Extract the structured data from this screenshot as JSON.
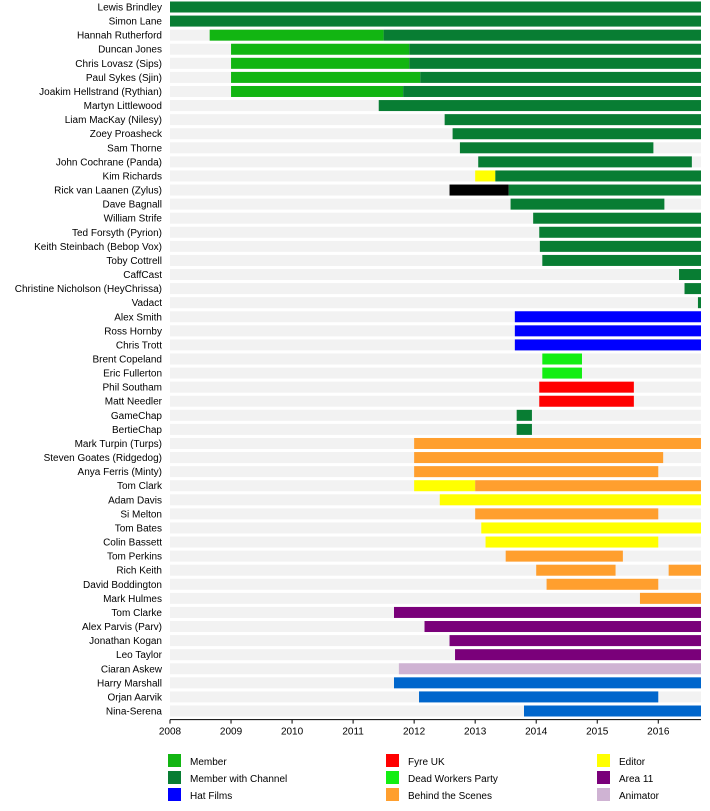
{
  "chart_data": {
    "type": "bar",
    "orientation": "horizontal-timeline",
    "title": "",
    "xlabel": "",
    "ylabel": "",
    "xlim": [
      2008,
      2016.7
    ],
    "x_ticks": [
      2008,
      2009,
      2010,
      2011,
      2012,
      2013,
      2014,
      2015,
      2016
    ],
    "grid": false,
    "legend_position": "bottom",
    "colors": {
      "Member": "#12b512",
      "Member with Channel": "#087d33",
      "Hat Films": "#0000ff",
      "Fyre UK": "#ff0000",
      "Dead Workers Party": "#12ee12",
      "Behind the Scenes": "#ff9f2e",
      "Editor": "#ffff00",
      "Area 11": "#7a007a",
      "Animator": "#cfb3d3",
      "Black": "#000000",
      "Mid Blue": "#0066cc"
    },
    "legend": [
      {
        "name": "Member",
        "color": "#12b512"
      },
      {
        "name": "Member with Channel",
        "color": "#087d33"
      },
      {
        "name": "Hat Films",
        "color": "#0000ff"
      },
      {
        "name": "Fyre UK",
        "color": "#ff0000"
      },
      {
        "name": "Dead Workers Party",
        "color": "#12ee12"
      },
      {
        "name": "Behind the Scenes",
        "color": "#ff9f2e"
      },
      {
        "name": "Editor",
        "color": "#ffff00"
      },
      {
        "name": "Area 11",
        "color": "#7a007a"
      },
      {
        "name": "Animator",
        "color": "#cfb3d3"
      }
    ],
    "rows": [
      {
        "name": "Lewis Brindley",
        "segments": [
          {
            "start": 2008.0,
            "end": 2016.7,
            "color": "#087d33"
          }
        ]
      },
      {
        "name": "Simon Lane",
        "segments": [
          {
            "start": 2008.0,
            "end": 2016.7,
            "color": "#087d33"
          }
        ]
      },
      {
        "name": "Hannah Rutherford",
        "segments": [
          {
            "start": 2008.65,
            "end": 2011.5,
            "color": "#12b512"
          },
          {
            "start": 2011.5,
            "end": 2016.7,
            "color": "#087d33"
          }
        ]
      },
      {
        "name": "Duncan Jones",
        "segments": [
          {
            "start": 2009.0,
            "end": 2011.92,
            "color": "#12b512"
          },
          {
            "start": 2011.92,
            "end": 2016.7,
            "color": "#087d33"
          }
        ]
      },
      {
        "name": "Chris Lovasz (Sips)",
        "segments": [
          {
            "start": 2009.0,
            "end": 2011.92,
            "color": "#12b512"
          },
          {
            "start": 2011.92,
            "end": 2016.7,
            "color": "#087d33"
          }
        ]
      },
      {
        "name": "Paul Sykes (Sjin)",
        "segments": [
          {
            "start": 2009.0,
            "end": 2012.1,
            "color": "#12b512"
          },
          {
            "start": 2012.1,
            "end": 2016.7,
            "color": "#087d33"
          }
        ]
      },
      {
        "name": "Joakim Hellstrand (Rythian)",
        "segments": [
          {
            "start": 2009.0,
            "end": 2011.82,
            "color": "#12b512"
          },
          {
            "start": 2011.82,
            "end": 2016.7,
            "color": "#087d33"
          }
        ]
      },
      {
        "name": "Martyn Littlewood",
        "segments": [
          {
            "start": 2011.42,
            "end": 2016.7,
            "color": "#087d33"
          }
        ]
      },
      {
        "name": "Liam MacKay (Nilesy)",
        "segments": [
          {
            "start": 2012.5,
            "end": 2016.7,
            "color": "#087d33"
          }
        ]
      },
      {
        "name": "Zoey Proasheck",
        "segments": [
          {
            "start": 2012.63,
            "end": 2016.7,
            "color": "#087d33"
          }
        ]
      },
      {
        "name": "Sam Thorne",
        "segments": [
          {
            "start": 2012.75,
            "end": 2015.92,
            "color": "#087d33"
          }
        ]
      },
      {
        "name": "John Cochrane (Panda)",
        "segments": [
          {
            "start": 2013.05,
            "end": 2016.55,
            "color": "#087d33"
          }
        ]
      },
      {
        "name": "Kim Richards",
        "segments": [
          {
            "start": 2013.0,
            "end": 2013.33,
            "color": "#ffff00"
          },
          {
            "start": 2013.33,
            "end": 2016.7,
            "color": "#087d33"
          }
        ]
      },
      {
        "name": "Rick van Laanen (Zylus)",
        "segments": [
          {
            "start": 2012.58,
            "end": 2013.55,
            "color": "#000000"
          },
          {
            "start": 2013.55,
            "end": 2016.7,
            "color": "#087d33"
          }
        ]
      },
      {
        "name": "Dave Bagnall",
        "segments": [
          {
            "start": 2013.58,
            "end": 2016.1,
            "color": "#087d33"
          }
        ]
      },
      {
        "name": "William Strife",
        "segments": [
          {
            "start": 2013.95,
            "end": 2016.7,
            "color": "#087d33"
          }
        ]
      },
      {
        "name": "Ted Forsyth (Pyrion)",
        "segments": [
          {
            "start": 2014.05,
            "end": 2016.7,
            "color": "#087d33"
          }
        ]
      },
      {
        "name": "Keith Steinbach (Bebop Vox)",
        "segments": [
          {
            "start": 2014.06,
            "end": 2016.7,
            "color": "#087d33"
          }
        ]
      },
      {
        "name": "Toby Cottrell",
        "segments": [
          {
            "start": 2014.1,
            "end": 2016.7,
            "color": "#087d33"
          }
        ]
      },
      {
        "name": "CaffCast",
        "segments": [
          {
            "start": 2016.34,
            "end": 2016.7,
            "color": "#087d33"
          }
        ]
      },
      {
        "name": "Christine Nicholson (HeyChrissa)",
        "segments": [
          {
            "start": 2016.43,
            "end": 2016.7,
            "color": "#087d33"
          }
        ]
      },
      {
        "name": "Vadact",
        "segments": [
          {
            "start": 2016.65,
            "end": 2016.7,
            "color": "#087d33"
          }
        ]
      },
      {
        "name": "Alex Smith",
        "segments": [
          {
            "start": 2013.65,
            "end": 2016.7,
            "color": "#0000ff"
          }
        ]
      },
      {
        "name": "Ross Hornby",
        "segments": [
          {
            "start": 2013.65,
            "end": 2016.7,
            "color": "#0000ff"
          }
        ]
      },
      {
        "name": "Chris Trott",
        "segments": [
          {
            "start": 2013.65,
            "end": 2016.7,
            "color": "#0000ff"
          }
        ]
      },
      {
        "name": "Brent Copeland",
        "segments": [
          {
            "start": 2014.1,
            "end": 2014.75,
            "color": "#12ee12"
          }
        ]
      },
      {
        "name": "Eric Fullerton",
        "segments": [
          {
            "start": 2014.1,
            "end": 2014.75,
            "color": "#12ee12"
          }
        ]
      },
      {
        "name": "Phil Southam",
        "segments": [
          {
            "start": 2014.05,
            "end": 2015.6,
            "color": "#ff0000"
          }
        ]
      },
      {
        "name": "Matt Needler",
        "segments": [
          {
            "start": 2014.05,
            "end": 2015.6,
            "color": "#ff0000"
          }
        ]
      },
      {
        "name": "GameChap",
        "segments": [
          {
            "start": 2013.68,
            "end": 2013.93,
            "color": "#087d33"
          }
        ]
      },
      {
        "name": "BertieChap",
        "segments": [
          {
            "start": 2013.68,
            "end": 2013.93,
            "color": "#087d33"
          }
        ]
      },
      {
        "name": "Mark Turpin (Turps)",
        "segments": [
          {
            "start": 2012.0,
            "end": 2016.7,
            "color": "#ff9f2e"
          }
        ]
      },
      {
        "name": "Steven Goates (Ridgedog)",
        "segments": [
          {
            "start": 2012.0,
            "end": 2016.08,
            "color": "#ff9f2e"
          }
        ]
      },
      {
        "name": "Anya Ferris (Minty)",
        "segments": [
          {
            "start": 2012.0,
            "end": 2016.0,
            "color": "#ff9f2e"
          }
        ]
      },
      {
        "name": "Tom Clark",
        "segments": [
          {
            "start": 2012.0,
            "end": 2013.0,
            "color": "#ffff00"
          },
          {
            "start": 2013.0,
            "end": 2016.7,
            "color": "#ff9f2e"
          }
        ]
      },
      {
        "name": "Adam Davis",
        "segments": [
          {
            "start": 2012.42,
            "end": 2016.7,
            "color": "#ffff00"
          }
        ]
      },
      {
        "name": "Si Melton",
        "segments": [
          {
            "start": 2013.0,
            "end": 2016.0,
            "color": "#ff9f2e"
          }
        ]
      },
      {
        "name": "Tom Bates",
        "segments": [
          {
            "start": 2013.1,
            "end": 2016.7,
            "color": "#ffff00"
          }
        ]
      },
      {
        "name": "Colin Bassett",
        "segments": [
          {
            "start": 2013.17,
            "end": 2016.0,
            "color": "#ffff00"
          }
        ]
      },
      {
        "name": "Tom Perkins",
        "segments": [
          {
            "start": 2013.5,
            "end": 2015.42,
            "color": "#ff9f2e"
          }
        ]
      },
      {
        "name": "Rich Keith",
        "segments": [
          {
            "start": 2014.0,
            "end": 2015.3,
            "color": "#ff9f2e"
          },
          {
            "start": 2016.17,
            "end": 2016.7,
            "color": "#ff9f2e"
          }
        ]
      },
      {
        "name": "David Boddington",
        "segments": [
          {
            "start": 2014.17,
            "end": 2016.0,
            "color": "#ff9f2e"
          }
        ]
      },
      {
        "name": "Mark Hulmes",
        "segments": [
          {
            "start": 2015.7,
            "end": 2016.7,
            "color": "#ff9f2e"
          }
        ]
      },
      {
        "name": "Tom Clarke",
        "segments": [
          {
            "start": 2011.67,
            "end": 2016.7,
            "color": "#7a007a"
          }
        ]
      },
      {
        "name": "Alex Parvis (Parv)",
        "segments": [
          {
            "start": 2012.17,
            "end": 2016.7,
            "color": "#7a007a"
          }
        ]
      },
      {
        "name": "Jonathan Kogan",
        "segments": [
          {
            "start": 2012.58,
            "end": 2016.7,
            "color": "#7a007a"
          }
        ]
      },
      {
        "name": "Leo Taylor",
        "segments": [
          {
            "start": 2012.67,
            "end": 2016.7,
            "color": "#7a007a"
          }
        ]
      },
      {
        "name": "Ciaran Askew",
        "segments": [
          {
            "start": 2011.75,
            "end": 2016.7,
            "color": "#cfb3d3"
          }
        ]
      },
      {
        "name": "Harry Marshall",
        "segments": [
          {
            "start": 2011.67,
            "end": 2016.7,
            "color": "#0066cc"
          }
        ]
      },
      {
        "name": "Orjan Aarvik",
        "segments": [
          {
            "start": 2012.08,
            "end": 2016.0,
            "color": "#0066cc"
          }
        ]
      },
      {
        "name": "Nina-Serena",
        "segments": [
          {
            "start": 2013.8,
            "end": 2016.7,
            "color": "#0066cc"
          }
        ]
      }
    ]
  }
}
